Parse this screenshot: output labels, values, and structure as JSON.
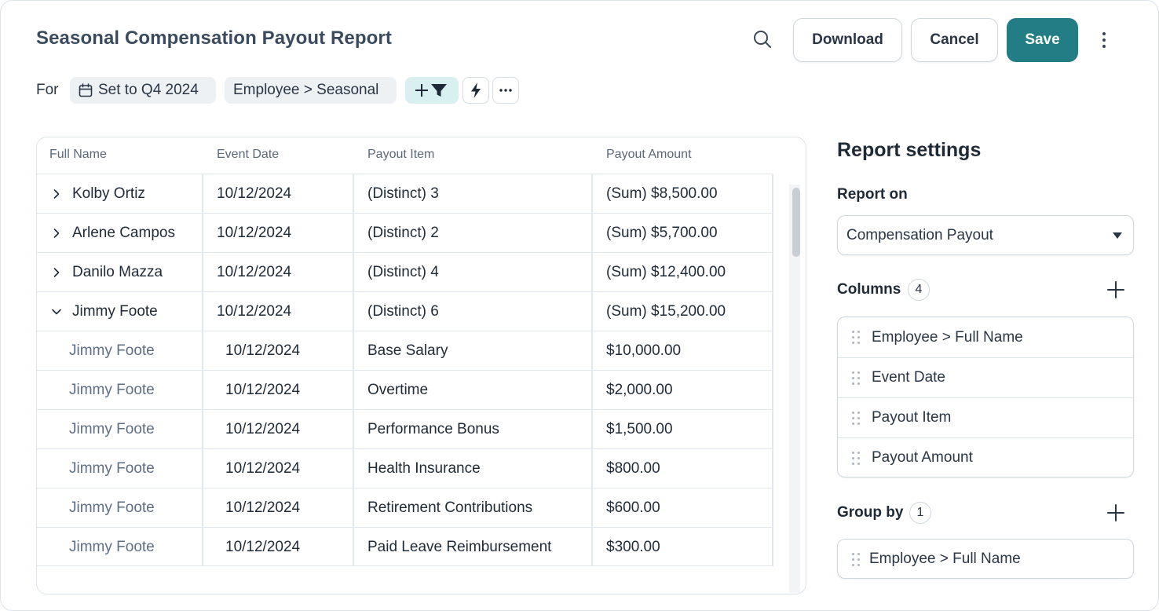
{
  "header": {
    "title": "Seasonal Compensation Payout Report",
    "download_label": "Download",
    "cancel_label": "Cancel",
    "save_label": "Save"
  },
  "filters": {
    "for_label": "For",
    "date_chip": "Set to Q4 2024",
    "employee_chip": "Employee > Seasonal"
  },
  "table": {
    "columns": [
      "Full Name",
      "Event Date",
      "Payout Item",
      "Payout Amount"
    ],
    "rows": [
      {
        "name": "Kolby Ortiz",
        "date": "10/12/2024",
        "item": "(Distinct) 3",
        "amount": "(Sum) $8,500.00",
        "group": true,
        "expanded": false
      },
      {
        "name": "Arlene Campos",
        "date": "10/12/2024",
        "item": "(Distinct) 2",
        "amount": "(Sum) $5,700.00",
        "group": true,
        "expanded": false
      },
      {
        "name": "Danilo Mazza",
        "date": "10/12/2024",
        "item": "(Distinct) 4",
        "amount": "(Sum) $12,400.00",
        "group": true,
        "expanded": false
      },
      {
        "name": "Jimmy Foote",
        "date": "10/12/2024",
        "item": "(Distinct) 6",
        "amount": "(Sum) $15,200.00",
        "group": true,
        "expanded": true
      },
      {
        "name": "Jimmy Foote",
        "date": "10/12/2024",
        "item": "Base Salary",
        "amount": "$10,000.00",
        "group": false
      },
      {
        "name": "Jimmy Foote",
        "date": "10/12/2024",
        "item": "Overtime",
        "amount": "$2,000.00",
        "group": false
      },
      {
        "name": "Jimmy Foote",
        "date": "10/12/2024",
        "item": "Performance Bonus",
        "amount": "$1,500.00",
        "group": false
      },
      {
        "name": "Jimmy Foote",
        "date": "10/12/2024",
        "item": "Health Insurance",
        "amount": "$800.00",
        "group": false
      },
      {
        "name": "Jimmy Foote",
        "date": "10/12/2024",
        "item": "Retirement Contributions",
        "amount": "$600.00",
        "group": false
      },
      {
        "name": "Jimmy Foote",
        "date": "10/12/2024",
        "item": "Paid Leave Reimbursement",
        "amount": "$300.00",
        "group": false
      }
    ]
  },
  "settings": {
    "title": "Report settings",
    "report_on_label": "Report on",
    "report_on_value": "Compensation Payout",
    "columns_label": "Columns",
    "columns_count": "4",
    "columns": [
      "Employee > Full Name",
      "Event Date",
      "Payout Item",
      "Payout Amount"
    ],
    "group_by_label": "Group by",
    "group_by_count": "1",
    "group_by": [
      "Employee > Full Name"
    ]
  },
  "colors": {
    "accent": "#227e84",
    "filter_chip": "#d9f0f0",
    "title": "#3b4b5f",
    "child_name": "#5e6e85"
  },
  "icons": {
    "search": "search-icon",
    "more": "more-vertical-icon",
    "calendar": "calendar-icon",
    "filter": "add-filter-icon",
    "bolt": "lightning-icon",
    "ellipsis": "more-horizontal-icon",
    "plus": "plus-icon",
    "grip": "drag-handle-icon"
  }
}
